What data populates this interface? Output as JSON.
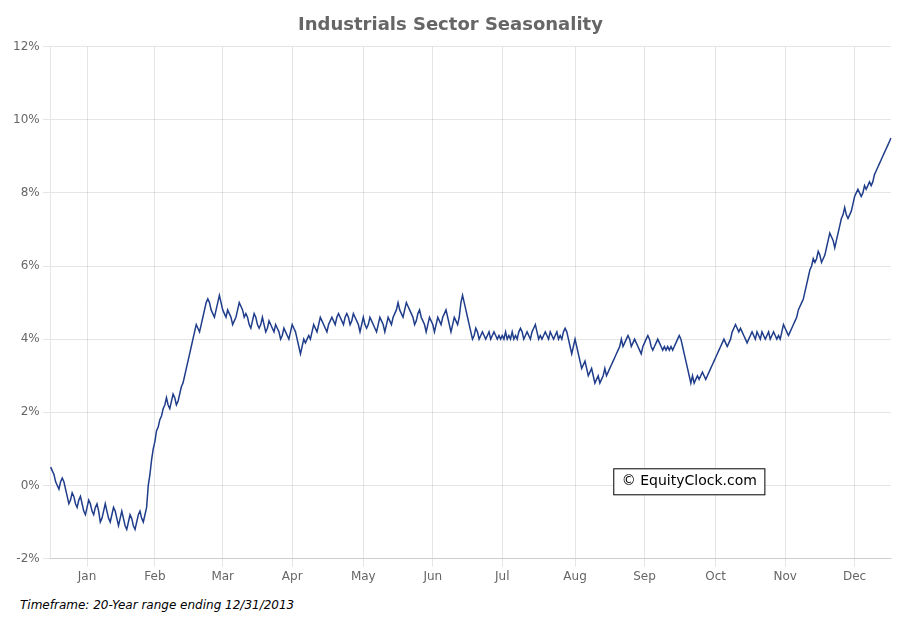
{
  "chart_data": {
    "type": "line",
    "title": "Industrials Sector Seasonality",
    "annotations": [
      "© EquityClock.com"
    ],
    "footnote": "Timeframe: 20-Year range ending 12/31/2013",
    "color": "#1f3d8a",
    "grid": true,
    "ylim": [
      -0.02,
      0.12
    ],
    "yticks": [
      {
        "value": -0.02,
        "label": "-2%"
      },
      {
        "value": 0.0,
        "label": "0%"
      },
      {
        "value": 0.02,
        "label": "2%"
      },
      {
        "value": 0.04,
        "label": "4%"
      },
      {
        "value": 0.06,
        "label": "6%"
      },
      {
        "value": 0.08,
        "label": "8%"
      },
      {
        "value": 0.1,
        "label": "10%"
      },
      {
        "value": 0.12,
        "label": "12%"
      }
    ],
    "categories": [
      null,
      null,
      null,
      null,
      null,
      null,
      null,
      null,
      null,
      null,
      null,
      null,
      null,
      null,
      null,
      null,
      null,
      null,
      null,
      null,
      null,
      null,
      "Jan",
      null,
      null,
      null,
      null,
      null,
      null,
      null,
      null,
      null,
      null,
      null,
      null,
      null,
      null,
      null,
      null,
      null,
      null,
      null,
      null,
      null,
      null,
      null,
      null,
      null,
      null,
      null,
      null,
      null,
      null,
      null,
      null,
      null,
      null,
      null,
      null,
      null,
      null,
      null,
      null,
      "Feb",
      null,
      null,
      null,
      null,
      null,
      null,
      null,
      null,
      null,
      null,
      null,
      null,
      null,
      null,
      null,
      null,
      null,
      null,
      null,
      null,
      null,
      null,
      null,
      null,
      null,
      null,
      null,
      null,
      null,
      null,
      null,
      null,
      null,
      null,
      null,
      null,
      null,
      null,
      null,
      null,
      "Mar",
      null,
      null,
      null,
      null,
      null,
      null,
      null,
      null,
      null,
      null,
      null,
      null,
      null,
      null,
      null,
      null,
      null,
      null,
      null,
      null,
      null,
      null,
      null,
      null,
      null,
      null,
      null,
      null,
      null,
      null,
      null,
      null,
      null,
      null,
      null,
      null,
      null,
      null,
      null,
      null,
      null,
      "Apr",
      null,
      null,
      null,
      null,
      null,
      null,
      null,
      null,
      null,
      null,
      null,
      null,
      null,
      null,
      null,
      null,
      null,
      null,
      null,
      null,
      null,
      null,
      null,
      null,
      null,
      null,
      null,
      null,
      null,
      null,
      null,
      null,
      null,
      null,
      null,
      null,
      null,
      null,
      null,
      null,
      null,
      null,
      "May",
      null,
      null,
      null,
      null,
      null,
      null,
      null,
      null,
      null,
      null,
      null,
      null,
      null,
      null,
      null,
      null,
      null,
      null,
      null,
      null,
      null,
      null,
      null,
      null,
      null,
      null,
      null,
      null,
      null,
      null,
      null,
      null,
      null,
      null,
      null,
      null,
      null,
      null,
      null,
      null,
      null,
      "Jun",
      null,
      null,
      null,
      null,
      null,
      null,
      null,
      null,
      null,
      null,
      null,
      null,
      null,
      null,
      null,
      null,
      null,
      null,
      null,
      null,
      null,
      null,
      null,
      null,
      null,
      null,
      null,
      null,
      null,
      null,
      null,
      null,
      null,
      null,
      null,
      null,
      null,
      null,
      null,
      null,
      null,
      "Jul",
      null,
      null,
      null,
      null,
      null,
      null,
      null,
      null,
      null,
      null,
      null,
      null,
      null,
      null,
      null,
      null,
      null,
      null,
      null,
      null,
      null,
      null,
      null,
      null,
      null,
      null,
      null,
      null,
      null,
      null,
      null,
      null,
      null,
      null,
      null,
      null,
      null,
      null,
      null,
      null,
      null,
      null,
      null,
      "Aug",
      null,
      null,
      null,
      null,
      null,
      null,
      null,
      null,
      null,
      null,
      null,
      null,
      null,
      null,
      null,
      null,
      null,
      null,
      null,
      null,
      null,
      null,
      null,
      null,
      null,
      null,
      null,
      null,
      null,
      null,
      null,
      null,
      null,
      null,
      null,
      null,
      null,
      null,
      null,
      null,
      null,
      "Sep",
      null,
      null,
      null,
      null,
      null,
      null,
      null,
      null,
      null,
      null,
      null,
      null,
      null,
      null,
      null,
      null,
      null,
      null,
      null,
      null,
      null,
      null,
      null,
      null,
      null,
      null,
      null,
      null,
      null,
      null,
      null,
      null,
      null,
      null,
      null,
      null,
      null,
      null,
      null,
      null,
      null,
      null,
      "Oct",
      null,
      null,
      null,
      null,
      null,
      null,
      null,
      null,
      null,
      null,
      null,
      null,
      null,
      null,
      null,
      null,
      null,
      null,
      null,
      null,
      null,
      null,
      null,
      null,
      null,
      null,
      null,
      null,
      null,
      null,
      null,
      null,
      null,
      null,
      null,
      null,
      null,
      null,
      null,
      null,
      null,
      "Nov",
      null,
      null,
      null,
      null,
      null,
      null,
      null,
      null,
      null,
      null,
      null,
      null,
      null,
      null,
      null,
      null,
      null,
      null,
      null,
      null,
      null,
      null,
      null,
      null,
      null,
      null,
      null,
      null,
      null,
      null,
      null,
      null,
      null,
      null,
      null,
      null,
      null,
      null,
      null,
      null,
      null,
      "Dec",
      null,
      null,
      null,
      null,
      null,
      null,
      null,
      null,
      null,
      null,
      null,
      null,
      null,
      null,
      null,
      null,
      null,
      null,
      null,
      null,
      null,
      null
    ],
    "values": [
      0.005,
      0.004,
      0.003,
      0.001,
      0.0,
      -0.001,
      0.001,
      0.002,
      0.001,
      -0.001,
      -0.003,
      -0.005,
      -0.004,
      -0.002,
      -0.003,
      -0.005,
      -0.006,
      -0.004,
      -0.003,
      -0.005,
      -0.007,
      -0.008,
      -0.006,
      -0.004,
      -0.005,
      -0.007,
      -0.008,
      -0.006,
      -0.005,
      -0.007,
      -0.01,
      -0.009,
      -0.007,
      -0.005,
      -0.007,
      -0.009,
      -0.01,
      -0.008,
      -0.006,
      -0.007,
      -0.009,
      -0.011,
      -0.009,
      -0.007,
      -0.009,
      -0.011,
      -0.012,
      -0.01,
      -0.008,
      -0.009,
      -0.011,
      -0.012,
      -0.01,
      -0.008,
      -0.007,
      -0.009,
      -0.01,
      -0.008,
      -0.006,
      0.0,
      0.003,
      0.007,
      0.01,
      0.012,
      0.015,
      0.016,
      0.018,
      0.019,
      0.021,
      0.022,
      0.024,
      0.022,
      0.021,
      0.023,
      0.025,
      0.024,
      0.022,
      0.023,
      0.025,
      0.027,
      0.028,
      0.03,
      0.032,
      0.034,
      0.036,
      0.038,
      0.04,
      0.042,
      0.044,
      0.043,
      0.042,
      0.044,
      0.046,
      0.048,
      0.05,
      0.051,
      0.05,
      0.048,
      0.047,
      0.046,
      0.048,
      0.05,
      0.052,
      0.05,
      0.048,
      0.047,
      0.046,
      0.048,
      0.047,
      0.046,
      0.044,
      0.045,
      0.046,
      0.048,
      0.05,
      0.049,
      0.048,
      0.046,
      0.047,
      0.046,
      0.044,
      0.043,
      0.045,
      0.047,
      0.046,
      0.044,
      0.043,
      0.044,
      0.046,
      0.044,
      0.042,
      0.043,
      0.045,
      0.044,
      0.043,
      0.042,
      0.044,
      0.043,
      0.042,
      0.04,
      0.041,
      0.043,
      0.042,
      0.041,
      0.04,
      0.042,
      0.044,
      0.043,
      0.042,
      0.04,
      0.038,
      0.036,
      0.038,
      0.04,
      0.039,
      0.04,
      0.041,
      0.04,
      0.042,
      0.044,
      0.043,
      0.042,
      0.044,
      0.046,
      0.045,
      0.044,
      0.043,
      0.042,
      0.044,
      0.045,
      0.046,
      0.045,
      0.044,
      0.046,
      0.047,
      0.046,
      0.045,
      0.044,
      0.046,
      0.047,
      0.046,
      0.044,
      0.045,
      0.047,
      0.046,
      0.045,
      0.044,
      0.042,
      0.044,
      0.046,
      0.044,
      0.043,
      0.044,
      0.046,
      0.045,
      0.044,
      0.043,
      0.042,
      0.044,
      0.046,
      0.045,
      0.044,
      0.042,
      0.044,
      0.046,
      0.045,
      0.044,
      0.046,
      0.047,
      0.048,
      0.05,
      0.048,
      0.047,
      0.046,
      0.048,
      0.05,
      0.049,
      0.048,
      0.047,
      0.046,
      0.044,
      0.045,
      0.047,
      0.048,
      0.046,
      0.045,
      0.044,
      0.042,
      0.044,
      0.046,
      0.045,
      0.044,
      0.042,
      0.044,
      0.046,
      0.045,
      0.044,
      0.046,
      0.047,
      0.048,
      0.046,
      0.044,
      0.042,
      0.044,
      0.046,
      0.045,
      0.044,
      0.046,
      0.05,
      0.052,
      0.05,
      0.048,
      0.046,
      0.044,
      0.042,
      0.04,
      0.041,
      0.043,
      0.042,
      0.04,
      0.041,
      0.042,
      0.041,
      0.04,
      0.041,
      0.042,
      0.04,
      0.041,
      0.042,
      0.041,
      0.04,
      0.041,
      0.04,
      0.041,
      0.04,
      0.042,
      0.04,
      0.041,
      0.04,
      0.042,
      0.04,
      0.041,
      0.04,
      0.042,
      0.043,
      0.042,
      0.04,
      0.041,
      0.042,
      0.041,
      0.04,
      0.042,
      0.043,
      0.044,
      0.042,
      0.04,
      0.041,
      0.04,
      0.041,
      0.042,
      0.041,
      0.04,
      0.042,
      0.041,
      0.04,
      0.041,
      0.042,
      0.04,
      0.041,
      0.04,
      0.042,
      0.043,
      0.042,
      0.04,
      0.038,
      0.036,
      0.038,
      0.04,
      0.038,
      0.036,
      0.034,
      0.032,
      0.033,
      0.034,
      0.032,
      0.03,
      0.031,
      0.032,
      0.03,
      0.028,
      0.029,
      0.03,
      0.028,
      0.029,
      0.03,
      0.032,
      0.03,
      0.031,
      0.032,
      0.033,
      0.034,
      0.035,
      0.036,
      0.037,
      0.038,
      0.04,
      0.038,
      0.039,
      0.04,
      0.041,
      0.04,
      0.038,
      0.039,
      0.04,
      0.039,
      0.038,
      0.037,
      0.036,
      0.038,
      0.039,
      0.04,
      0.041,
      0.04,
      0.038,
      0.037,
      0.038,
      0.039,
      0.04,
      0.039,
      0.038,
      0.037,
      0.038,
      0.037,
      0.038,
      0.037,
      0.038,
      0.037,
      0.038,
      0.039,
      0.04,
      0.041,
      0.04,
      0.038,
      0.036,
      0.034,
      0.032,
      0.03,
      0.028,
      0.03,
      0.028,
      0.029,
      0.03,
      0.029,
      0.03,
      0.031,
      0.03,
      0.029,
      0.03,
      0.031,
      0.032,
      0.033,
      0.034,
      0.035,
      0.036,
      0.037,
      0.038,
      0.039,
      0.04,
      0.039,
      0.038,
      0.039,
      0.04,
      0.042,
      0.043,
      0.044,
      0.043,
      0.042,
      0.043,
      0.042,
      0.041,
      0.04,
      0.039,
      0.04,
      0.041,
      0.042,
      0.041,
      0.04,
      0.042,
      0.041,
      0.04,
      0.042,
      0.041,
      0.04,
      0.041,
      0.042,
      0.04,
      0.041,
      0.042,
      0.041,
      0.04,
      0.041,
      0.04,
      0.042,
      0.044,
      0.043,
      0.042,
      0.041,
      0.042,
      0.043,
      0.044,
      0.045,
      0.046,
      0.048,
      0.049,
      0.05,
      0.051,
      0.053,
      0.055,
      0.057,
      0.059,
      0.06,
      0.062,
      0.061,
      0.062,
      0.064,
      0.063,
      0.061,
      0.062,
      0.063,
      0.065,
      0.067,
      0.069,
      0.068,
      0.067,
      0.065,
      0.067,
      0.069,
      0.071,
      0.073,
      0.074,
      0.076,
      0.074,
      0.073,
      0.074,
      0.075,
      0.077,
      0.079,
      0.08,
      0.081,
      0.08,
      0.079,
      0.08,
      0.082,
      0.081,
      0.082,
      0.083,
      0.082,
      0.083,
      0.085,
      0.086,
      0.087,
      0.088,
      0.089,
      0.09,
      0.091,
      0.092,
      0.093,
      0.094,
      0.095
    ]
  }
}
